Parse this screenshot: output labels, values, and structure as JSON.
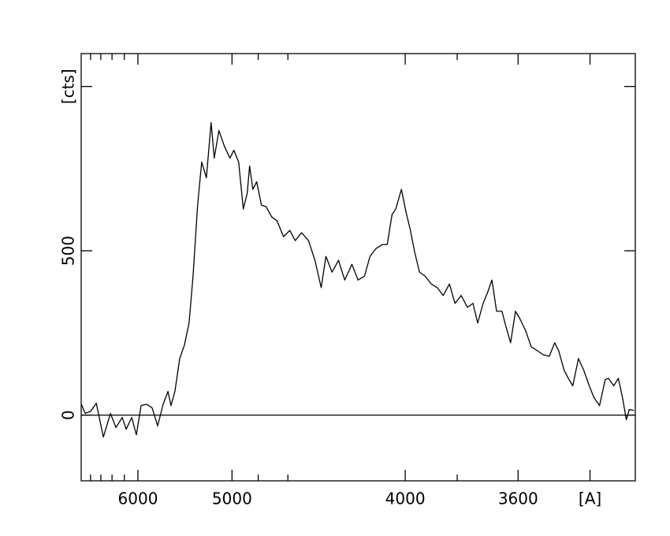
{
  "chart_data": {
    "type": "line",
    "xscale": "inverse-square",
    "xlim": [
      7000,
      3290
    ],
    "ylim": [
      -200,
      1100
    ],
    "xticks": [
      6000,
      5000,
      4000,
      3600,
      {
        "value": 3400,
        "label": "[A]"
      }
    ],
    "xminorticks": [
      6800,
      6600,
      6400,
      6200,
      4800,
      4600,
      3800
    ],
    "yticks": [
      0,
      500,
      {
        "value": 1000,
        "label": "[cts]"
      }
    ],
    "baseline": 0,
    "series": [
      {
        "color": "#000000",
        "x": [
          6997,
          6911,
          6797,
          6686,
          6553,
          6427,
          6334,
          6233,
          6172,
          6089,
          6022,
          5956,
          5882,
          5810,
          5741,
          5675,
          5618,
          5584,
          5540,
          5488,
          5438,
          5390,
          5350,
          5305,
          5266,
          5222,
          5179,
          5151,
          5110,
          5063,
          5017,
          4985,
          4947,
          4911,
          4881,
          4863,
          4839,
          4811,
          4777,
          4744,
          4706,
          4670,
          4628,
          4588,
          4554,
          4516,
          4475,
          4438,
          4403,
          4377,
          4344,
          4310,
          4278,
          4242,
          4212,
          4181,
          4155,
          4127,
          4098,
          4077,
          4056,
          4040,
          4016,
          3996,
          3980,
          3961,
          3942,
          3920,
          3896,
          3872,
          3851,
          3828,
          3808,
          3786,
          3764,
          3745,
          3729,
          3711,
          3695,
          3682,
          3667,
          3650,
          3637,
          3623,
          3608,
          3594,
          3577,
          3561,
          3543,
          3527,
          3509,
          3494,
          3483,
          3468,
          3457,
          3445,
          3430,
          3416,
          3402,
          3390,
          3376,
          3362,
          3354,
          3341,
          3330,
          3320,
          3311,
          3304,
          3293
        ],
        "values": [
          33,
          5,
          12,
          36,
          -67,
          5,
          -38,
          -7,
          -43,
          -7,
          -60,
          29,
          33,
          22,
          -33,
          33,
          72,
          29,
          72,
          172,
          213,
          280,
          423,
          639,
          770,
          722,
          890,
          782,
          866,
          818,
          782,
          806,
          770,
          627,
          675,
          758,
          687,
          710,
          639,
          634,
          603,
          591,
          543,
          562,
          531,
          555,
          531,
          471,
          388,
          483,
          435,
          471,
          411,
          459,
          411,
          423,
          483,
          507,
          519,
          519,
          610,
          627,
          687,
          615,
          567,
          495,
          435,
          423,
          399,
          387,
          364,
          399,
          340,
          364,
          328,
          340,
          280,
          340,
          376,
          411,
          316,
          316,
          268,
          220,
          316,
          292,
          256,
          208,
          196,
          184,
          179,
          220,
          196,
          136,
          112,
          89,
          172,
          136,
          89,
          53,
          29,
          108,
          112,
          89,
          112,
          53,
          -14,
          17,
          14
        ]
      }
    ]
  }
}
